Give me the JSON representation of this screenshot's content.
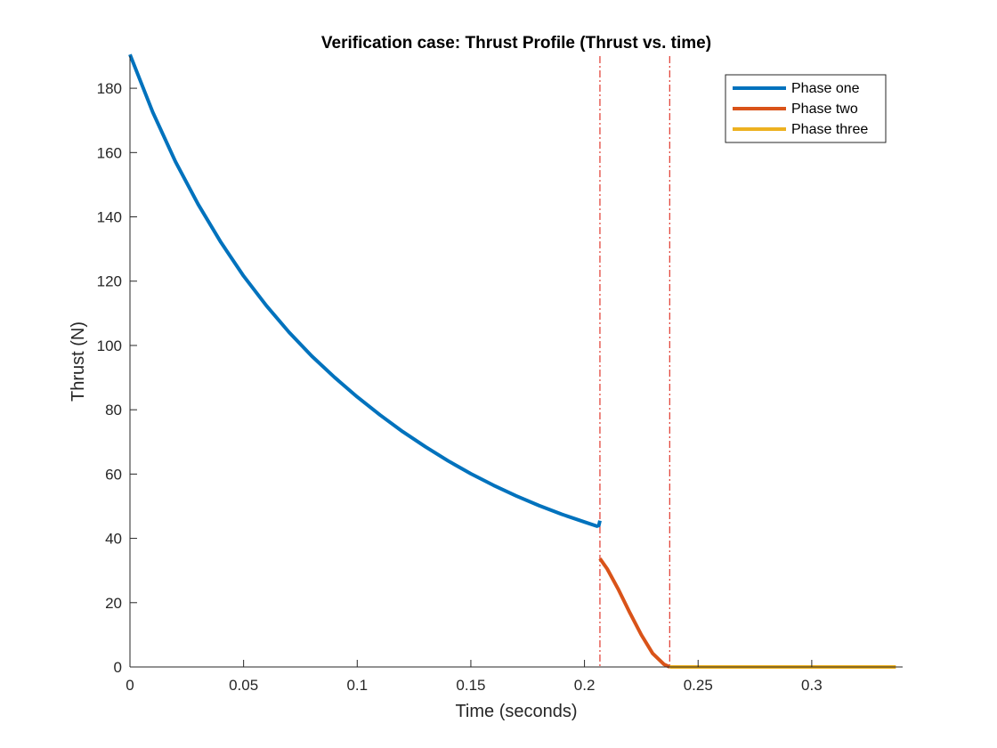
{
  "chart_data": {
    "type": "line",
    "title": "Verification case: Thrust Profile (Thrust vs. time)",
    "xlabel": "Time (seconds)",
    "ylabel": "Thrust (N)",
    "xlim": [
      0,
      0.34
    ],
    "ylim": [
      0,
      190
    ],
    "xticks": [
      0,
      0.05,
      0.1,
      0.15,
      0.2,
      0.25,
      0.3
    ],
    "xtick_labels": [
      "0",
      "0.05",
      "0.1",
      "0.15",
      "0.2",
      "0.25",
      "0.3"
    ],
    "yticks": [
      0,
      20,
      40,
      60,
      80,
      100,
      120,
      140,
      160,
      180
    ],
    "ytick_labels": [
      "0",
      "20",
      "40",
      "60",
      "80",
      "100",
      "120",
      "140",
      "160",
      "180"
    ],
    "grid": false,
    "legend_position": "top-right",
    "series": [
      {
        "name": "Phase one",
        "color": "#0072BD",
        "x": [
          0,
          0.01,
          0.02,
          0.03,
          0.04,
          0.05,
          0.06,
          0.07,
          0.08,
          0.09,
          0.1,
          0.11,
          0.12,
          0.13,
          0.14,
          0.15,
          0.16,
          0.17,
          0.18,
          0.19,
          0.2,
          0.2055,
          0.2063,
          0.2068
        ],
        "y": [
          190.5,
          172.6,
          157.2,
          143.9,
          132.1,
          121.6,
          112.4,
          104.1,
          96.7,
          90.1,
          84.0,
          78.4,
          73.2,
          68.5,
          64.1,
          60.1,
          56.5,
          53.2,
          50.2,
          47.5,
          45.1,
          43.8,
          44.0,
          45.5
        ]
      },
      {
        "name": "Phase two",
        "color": "#D95319",
        "x": [
          0.2068,
          0.21,
          0.215,
          0.22,
          0.225,
          0.23,
          0.235,
          0.2375
        ],
        "y": [
          33.7,
          30.5,
          24.0,
          16.8,
          10.0,
          4.2,
          0.8,
          0
        ]
      },
      {
        "name": "Phase three",
        "color": "#EDB120",
        "x": [
          0.2375,
          0.337
        ],
        "y": [
          0,
          0
        ]
      }
    ],
    "phase_boundaries": {
      "color": "#E0382E",
      "x": [
        0.2068,
        0.2375
      ]
    }
  }
}
